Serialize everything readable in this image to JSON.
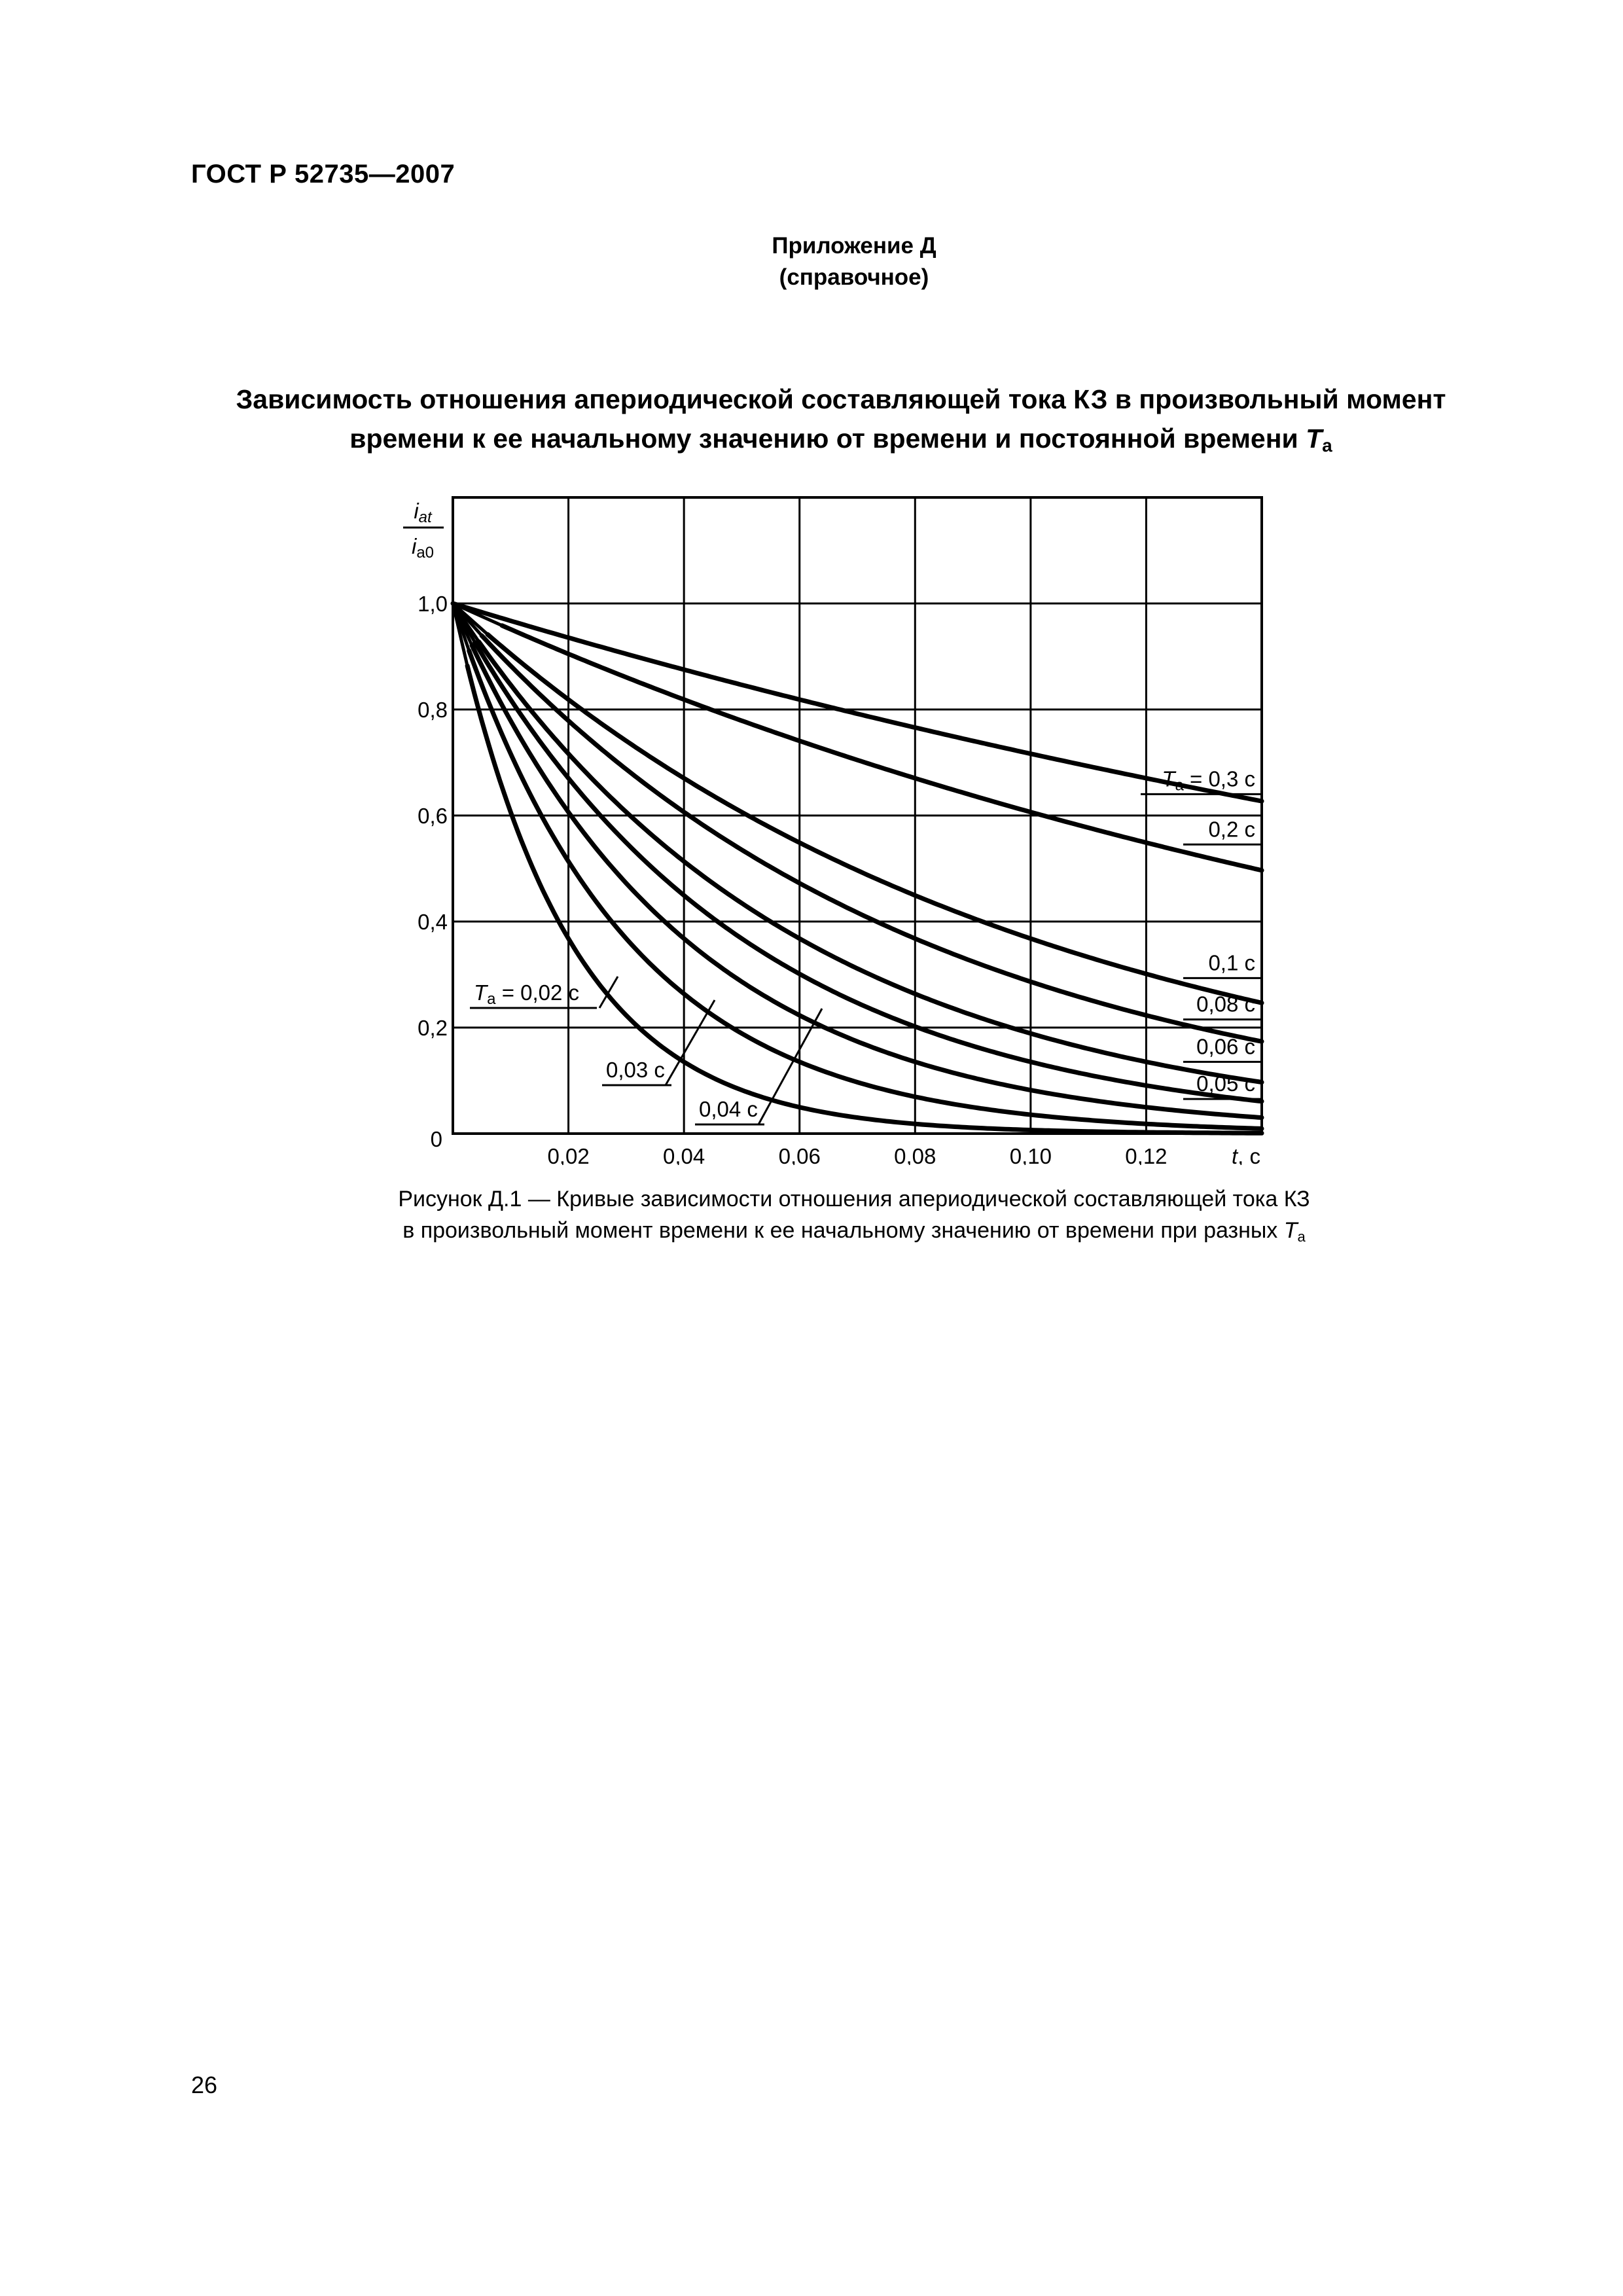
{
  "header": {
    "standard": "ГОСТ Р 52735—2007"
  },
  "appendix": {
    "title": "Приложение Д",
    "type": "(справочное)"
  },
  "title": {
    "line1": "Зависимость отношения апериодической составляющей тока КЗ в произвольный момент",
    "line2_text": "времени к ее начальному значению от времени и постоянной времени",
    "line2_symbol": "T",
    "line2_subscript": "а"
  },
  "chart_data": {
    "type": "line",
    "ylabel_numerator": "i",
    "ylabel_numerator_sub": "at",
    "ylabel_denominator": "i",
    "ylabel_denominator_sub": "a0",
    "xlabel_symbol": "t",
    "xlabel_unit": ", с",
    "xlim": [
      0,
      0.14
    ],
    "ylim": [
      0,
      1.2
    ],
    "x_ticks": [
      0.02,
      0.04,
      0.06,
      0.08,
      0.1,
      0.12
    ],
    "x_tick_labels": [
      "0,02",
      "0,04",
      "0,06",
      "0,08",
      "0,10",
      "0,12"
    ],
    "y_ticks": [
      0.2,
      0.4,
      0.6,
      0.8,
      1.0
    ],
    "y_tick_labels": [
      "0,2",
      "0,4",
      "0,6",
      "0,8",
      "1,0"
    ],
    "origin_label": "0",
    "grid": true,
    "formula": "i_at / i_a0 = exp(-t / T_a)",
    "series": [
      {
        "Ta": 0.3,
        "label_prefix": "T",
        "label_sub": "а",
        "label_suffix": " = 0,3 с"
      },
      {
        "Ta": 0.2,
        "label": "0,2 с"
      },
      {
        "Ta": 0.1,
        "label": "0,1 с"
      },
      {
        "Ta": 0.08,
        "label": "0,08 с"
      },
      {
        "Ta": 0.06,
        "label": "0,06 с"
      },
      {
        "Ta": 0.05,
        "label": "0,05 с"
      },
      {
        "Ta": 0.04,
        "label": "0,04 с"
      },
      {
        "Ta": 0.03,
        "label": "0,03 с"
      },
      {
        "Ta": 0.02,
        "label_prefix": "T",
        "label_sub": "а",
        "label_suffix": " = 0,02 с"
      }
    ]
  },
  "caption": {
    "line1": "Рисунок Д.1 — Кривые зависимости отношения апериодической составляющей тока КЗ",
    "line2_text": "в произвольный момент времени к ее начальному значению от времени при разных",
    "line2_symbol": "T",
    "line2_subscript": "а"
  },
  "page_number": "26"
}
